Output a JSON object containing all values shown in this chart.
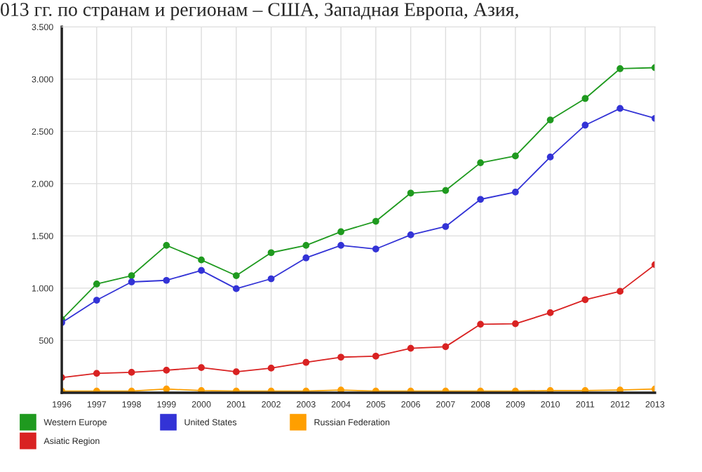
{
  "chart_data": {
    "type": "line",
    "title": "013 гг. по странам и регионам – США, Западная Европа, Азия,",
    "categories": [
      "1996",
      "1997",
      "1998",
      "1999",
      "2000",
      "2001",
      "2002",
      "2003",
      "2004",
      "2005",
      "2006",
      "2007",
      "2008",
      "2009",
      "2010",
      "2011",
      "2012",
      "2013"
    ],
    "series": [
      {
        "name": "Western Europe",
        "color": "#1f9a1f",
        "values": [
          700,
          1040,
          1120,
          1410,
          1270,
          1120,
          1340,
          1410,
          1540,
          1640,
          1910,
          1935,
          2200,
          2265,
          2610,
          2815,
          3100,
          3110
        ]
      },
      {
        "name": "Asiatic Region",
        "color": "#d92222",
        "values": [
          145,
          185,
          195,
          215,
          240,
          200,
          235,
          290,
          340,
          350,
          425,
          440,
          655,
          660,
          765,
          890,
          970,
          1225
        ]
      },
      {
        "name": "United States",
        "color": "#3333d6",
        "values": [
          670,
          885,
          1060,
          1075,
          1170,
          995,
          1090,
          1290,
          1410,
          1375,
          1510,
          1590,
          1850,
          1920,
          2255,
          2560,
          2720,
          2625
        ]
      },
      {
        "name": "Russian Federation",
        "color": "#ff9f00",
        "values": [
          15,
          15,
          15,
          35,
          20,
          15,
          15,
          15,
          25,
          15,
          15,
          15,
          15,
          15,
          20,
          20,
          25,
          35
        ]
      }
    ],
    "ylim": [
      0,
      3500
    ],
    "yticks": [
      {
        "value": 0,
        "label": null
      },
      {
        "value": 500,
        "label": "500"
      },
      {
        "value": 1000,
        "label": "1.000"
      },
      {
        "value": 1500,
        "label": "1.500"
      },
      {
        "value": 2000,
        "label": "2.000"
      },
      {
        "value": 2500,
        "label": "2.500"
      },
      {
        "value": 3000,
        "label": "3.000"
      },
      {
        "value": 3500,
        "label": "3.500"
      }
    ],
    "grid": true,
    "legend": "bottom",
    "marker": "circle",
    "line_style": "solid"
  }
}
